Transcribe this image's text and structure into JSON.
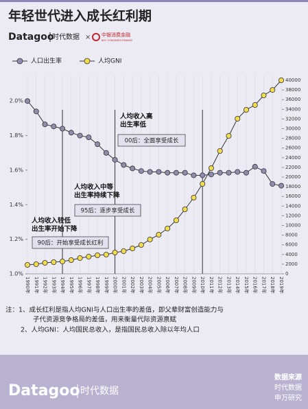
{
  "header": {
    "title": "年轻世代进入成长红利期",
    "brand": "Datagoo",
    "brand_cn": "时代数据",
    "cross": "×",
    "partner": "中银消费金融",
    "partner_en": "BOC CONSUMER FINANCE"
  },
  "chart_data": {
    "type": "line",
    "categories": [
      "1990年",
      "1991年",
      "1992年",
      "1993年",
      "1994年",
      "1995年",
      "1996年",
      "1997年",
      "1998年",
      "1999年",
      "2000年",
      "2001年",
      "2002年",
      "2003年",
      "2004年",
      "2005年",
      "2006年",
      "2007年",
      "2008年",
      "2009年",
      "2010年",
      "2011年",
      "2012年",
      "2013年",
      "2014年",
      "2015年",
      "2016年",
      "2017年",
      "2018年",
      "2019年"
    ],
    "series": [
      {
        "name": "人口出生率",
        "color": "#8f8cae",
        "values": [
          2.0,
          1.94,
          1.865,
          1.853,
          1.84,
          1.817,
          1.8,
          1.79,
          1.75,
          1.7,
          1.66,
          1.63,
          1.61,
          1.595,
          1.59,
          1.59,
          1.585,
          1.585,
          1.585,
          1.57,
          1.57,
          1.575,
          1.585,
          1.585,
          1.59,
          1.585,
          1.62,
          1.595,
          1.52,
          1.51
        ]
      },
      {
        "name": "人均GNI",
        "color": "#f3db4e",
        "axis": "y2",
        "values": [
          1844,
          1986,
          2270,
          2411,
          2553,
          2837,
          3262,
          3546,
          3830,
          3972,
          4397,
          4681,
          5248,
          5957,
          7092,
          8085,
          9362,
          11064,
          13333,
          15745,
          18582,
          21844,
          25390,
          28511,
          32057,
          33901,
          34894,
          36879,
          38000,
          40000
        ]
      }
    ],
    "ylim": [
      1.0,
      2.12
    ],
    "yticks": [
      {
        "value": 1.0,
        "label": "1.0%"
      },
      {
        "value": 1.2,
        "label": "1.2%"
      },
      {
        "value": 1.4,
        "label": "1.4%"
      },
      {
        "value": 1.6,
        "label": "1.6%"
      },
      {
        "value": 1.8,
        "label": "1.8%"
      },
      {
        "value": 2.0,
        "label": "2.0%"
      }
    ],
    "y2lim": [
      0,
      40000
    ],
    "y2ticks": [
      0,
      2000,
      4000,
      6000,
      8000,
      10000,
      12000,
      14000,
      16000,
      18000,
      20000,
      22000,
      24000,
      26000,
      28000,
      30000,
      32000,
      34000,
      36000,
      38000,
      40000
    ],
    "annotations": [
      {
        "lines": [
          "人均收入较低",
          "出生率开始下降"
        ],
        "box": "90后：开始享受成长红利"
      },
      {
        "lines": [
          "人均收入中等",
          "出生率持续下降"
        ],
        "box": "95后：逐步享受成长"
      },
      {
        "lines": [
          "人均收入高",
          "出生率低"
        ],
        "box": "00后：全面享受成长"
      }
    ]
  },
  "notes": [
    "注：1、成长红利是指人均GNI与人口出生率的差值，即父辈财富创造能力与",
    "子代资源竞争格局的差值，用来衡量代际资源禀赋",
    "2、人均GNI：人均国民总收入，是指国民总收入除以年均人口"
  ],
  "footer": {
    "brand": "Datagoo",
    "brand_cn": "时代数据",
    "source_title": "数据来源",
    "sources": [
      "时代数据",
      "申万研究"
    ]
  }
}
